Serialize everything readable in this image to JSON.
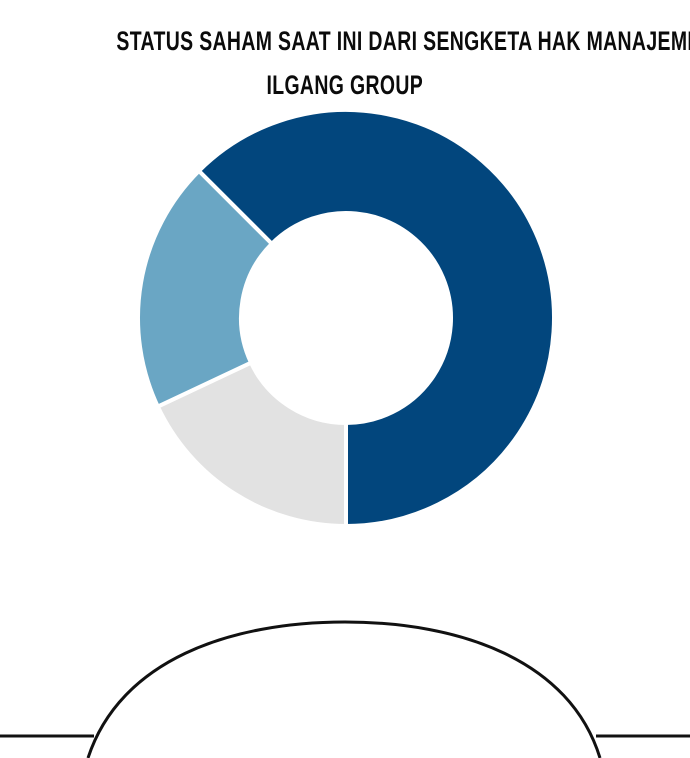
{
  "chart_data": {
    "type": "pie",
    "donut": true,
    "title_lines": [
      "STATUS SAHAM SAAT INI DARI SENGKETA HAK MANAJEMEN",
      "ILGANG GROUP"
    ],
    "slices": [
      {
        "value": 62.5,
        "color": "#02467d"
      },
      {
        "value": 18.0,
        "color": "#e2e2e2"
      },
      {
        "value": 19.5,
        "color": "#6aa6c4"
      }
    ],
    "start_angle_deg": -45,
    "direction": "clockwise",
    "legend": "none",
    "data_labels": "none"
  }
}
